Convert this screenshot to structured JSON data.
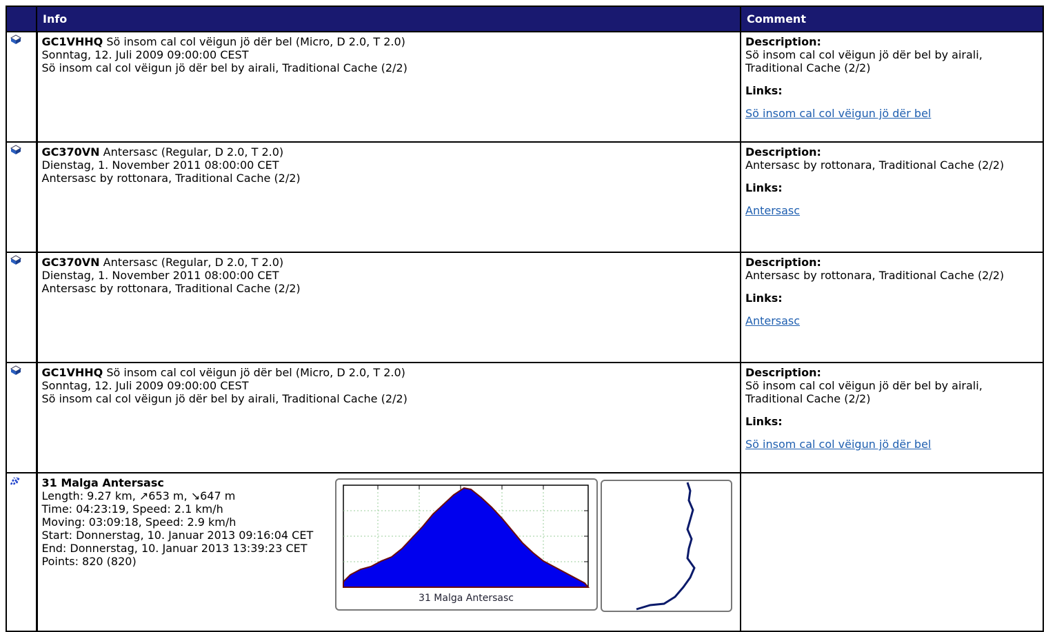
{
  "header": {
    "info": "Info",
    "comment": "Comment"
  },
  "labels": {
    "description": "Description:",
    "links": "Links:"
  },
  "caches": [
    {
      "code": "GC1VHHQ",
      "summary": "Sö insom cal col vëigun jö dër bel (Micro, D 2.0, T 2.0)",
      "date": "Sonntag, 12. Juli 2009 09:00:00 CEST",
      "line": "Sö insom cal col vëigun jö dër bel by airali, Traditional Cache (2/2)",
      "description": "Sö insom cal col vëigun jö dër bel by airali, Traditional Cache (2/2)",
      "link": "Sö insom cal col vëigun jö dër bel"
    },
    {
      "code": "GC370VN",
      "summary": "Antersasc (Regular, D 2.0, T 2.0)",
      "date": "Dienstag, 1. November 2011 08:00:00 CET",
      "line": "Antersasc by rottonara, Traditional Cache (2/2)",
      "description": "Antersasc by rottonara, Traditional Cache (2/2)",
      "link": "Antersasc"
    },
    {
      "code": "GC370VN",
      "summary": "Antersasc (Regular, D 2.0, T 2.0)",
      "date": "Dienstag, 1. November 2011 08:00:00 CET",
      "line": "Antersasc by rottonara, Traditional Cache (2/2)",
      "description": "Antersasc by rottonara, Traditional Cache (2/2)",
      "link": "Antersasc"
    },
    {
      "code": "GC1VHHQ",
      "summary": "Sö insom cal col vëigun jö dër bel (Micro, D 2.0, T 2.0)",
      "date": "Sonntag, 12. Juli 2009 09:00:00 CEST",
      "line": "Sö insom cal col vëigun jö dër bel by airali, Traditional Cache (2/2)",
      "description": "Sö insom cal col vëigun jö dër bel by airali, Traditional Cache (2/2)",
      "link": "Sö insom cal col vëigun jö dër bel"
    }
  ],
  "track": {
    "name": "31 Malga Antersasc",
    "lines": [
      "Length: 9.27 km, ↗653 m, ↘647 m",
      "Time: 04:23:19, Speed: 2.1 km/h",
      "Moving: 03:09:18, Speed: 2.9 km/h",
      "Start: Donnerstag, 10. Januar 2013 09:16:04 CET",
      "End: Donnerstag, 10. Januar 2013 13:39:23 CET",
      "Points: 820 (820)"
    ],
    "chart_caption": "31 Malga Antersasc"
  }
}
